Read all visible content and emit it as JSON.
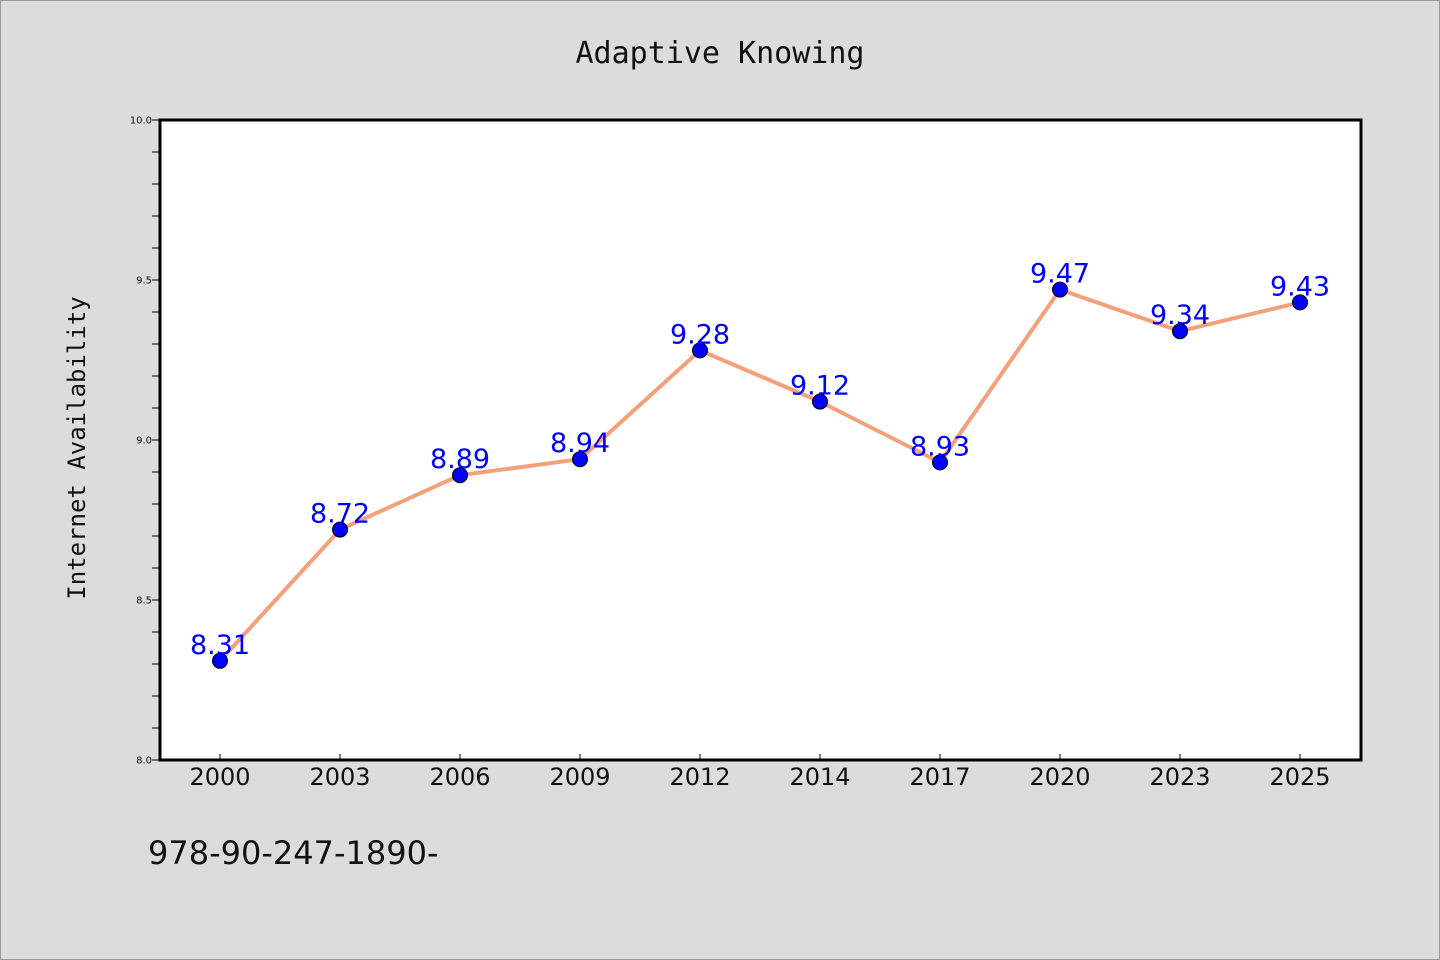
{
  "chart_data": {
    "type": "line",
    "title": "Adaptive Knowing",
    "xlabel": "",
    "ylabel": "Internet Availability",
    "categories": [
      "2000",
      "2003",
      "2006",
      "2009",
      "2012",
      "2014",
      "2017",
      "2020",
      "2023",
      "2025"
    ],
    "series": [
      {
        "values": [
          8.31,
          8.72,
          8.89,
          8.94,
          9.28,
          9.12,
          8.93,
          9.47,
          9.34,
          9.43
        ],
        "line_color": "#f4a07a",
        "marker_color": "#0000ff"
      }
    ],
    "data_labels": [
      "8.31",
      "8.72",
      "8.89",
      "8.94",
      "9.28",
      "9.12",
      "8.93",
      "9.47",
      "9.34",
      "9.43"
    ],
    "ylim": [
      8.0,
      10.0
    ],
    "yticks": [
      "8.0",
      "8.5",
      "9.0",
      "9.5",
      "10.0"
    ],
    "grid": false,
    "legend": "none"
  },
  "footer": {
    "text": "978-90-247-1890-"
  },
  "colors": {
    "background": "#dcdcdc",
    "plot_background": "#ffffff",
    "line": "#f4a07a",
    "marker": "#0000ff",
    "data_label": "#0000ff"
  }
}
